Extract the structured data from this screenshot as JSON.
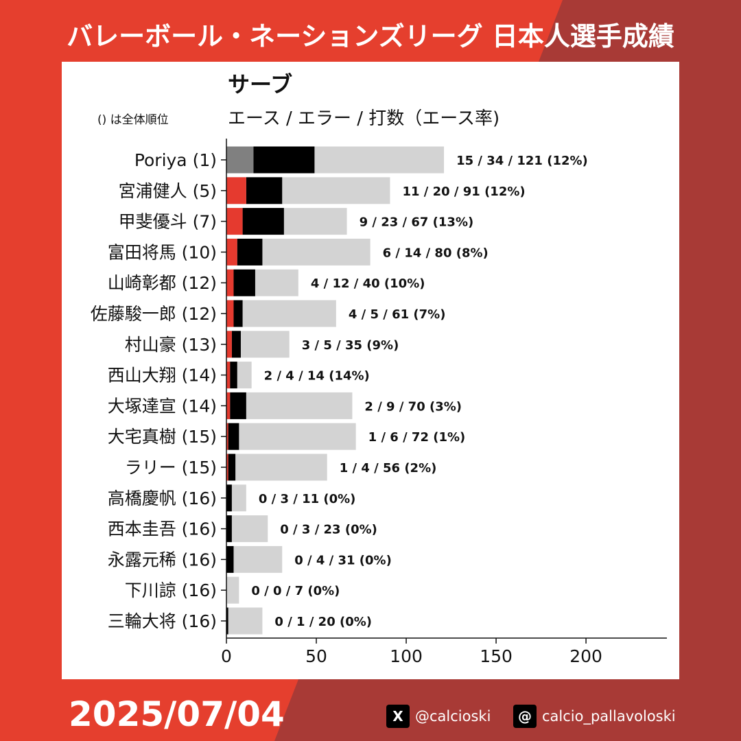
{
  "header": {
    "title": "バレーボール・ネーションズリーグ 日本人選手成績"
  },
  "panel": {
    "title": "サーブ",
    "note": "() は全体順位",
    "legend": "エース / エラー / 打数（エース率)"
  },
  "footer": {
    "date": "2025/07/04",
    "x_icon": "X",
    "x_handle": "@calcioski",
    "threads_icon": "@",
    "threads_handle": "calcio_pallavoloski"
  },
  "colors": {
    "ace": "#e53a2f",
    "ace_first": "#808080",
    "error": "#000000",
    "attempts": "#d3d3d3",
    "page_bg": "#e53f2e",
    "page_bg_dark": "#a83a36"
  },
  "chart_data": {
    "type": "bar",
    "orientation": "horizontal",
    "title": "サーブ",
    "xlim": [
      0,
      245
    ],
    "xticks": [
      0,
      50,
      100,
      150,
      200
    ],
    "tick_labels": [
      "0",
      "50",
      "100",
      "150",
      "200"
    ],
    "categories": [
      "Poriya (1)",
      "宮浦健人 (5)",
      "甲斐優斗 (7)",
      "富田将馬 (10)",
      "山崎彰都 (12)",
      "佐藤駿一郎 (12)",
      "村山豪 (13)",
      "西山大翔 (14)",
      "大塚達宣 (14)",
      "大宅真樹 (15)",
      "ラリー (15)",
      "高橋慶帆 (16)",
      "西本圭吾 (16)",
      "永露元稀 (16)",
      "下川諒 (16)",
      "三輪大将 (16)"
    ],
    "series": [
      {
        "name": "エース",
        "values": [
          15,
          11,
          9,
          6,
          4,
          4,
          3,
          2,
          2,
          1,
          1,
          0,
          0,
          0,
          0,
          0
        ]
      },
      {
        "name": "エラー",
        "values": [
          34,
          20,
          23,
          14,
          12,
          5,
          5,
          4,
          9,
          6,
          4,
          3,
          3,
          4,
          0,
          1
        ]
      },
      {
        "name": "打数",
        "values": [
          121,
          91,
          67,
          80,
          40,
          61,
          35,
          14,
          70,
          72,
          56,
          11,
          23,
          31,
          7,
          20
        ]
      }
    ],
    "data_labels": [
      "15 / 34 / 121 (12%)",
      "11 / 20 / 91 (12%)",
      "9 / 23 / 67 (13%)",
      "6 / 14 / 80 (8%)",
      "4 / 12 / 40 (10%)",
      "4 / 5 / 61 (7%)",
      "3 / 5 / 35 (9%)",
      "2 / 4 / 14 (14%)",
      "2 / 9 / 70 (3%)",
      "1 / 6 / 72 (1%)",
      "1 / 4 / 56 (2%)",
      "0 / 3 / 11 (0%)",
      "0 / 3 / 23 (0%)",
      "0 / 4 / 31 (0%)",
      "0 / 0 / 7 (0%)",
      "0 / 1 / 20 (0%)"
    ],
    "grid": false
  }
}
